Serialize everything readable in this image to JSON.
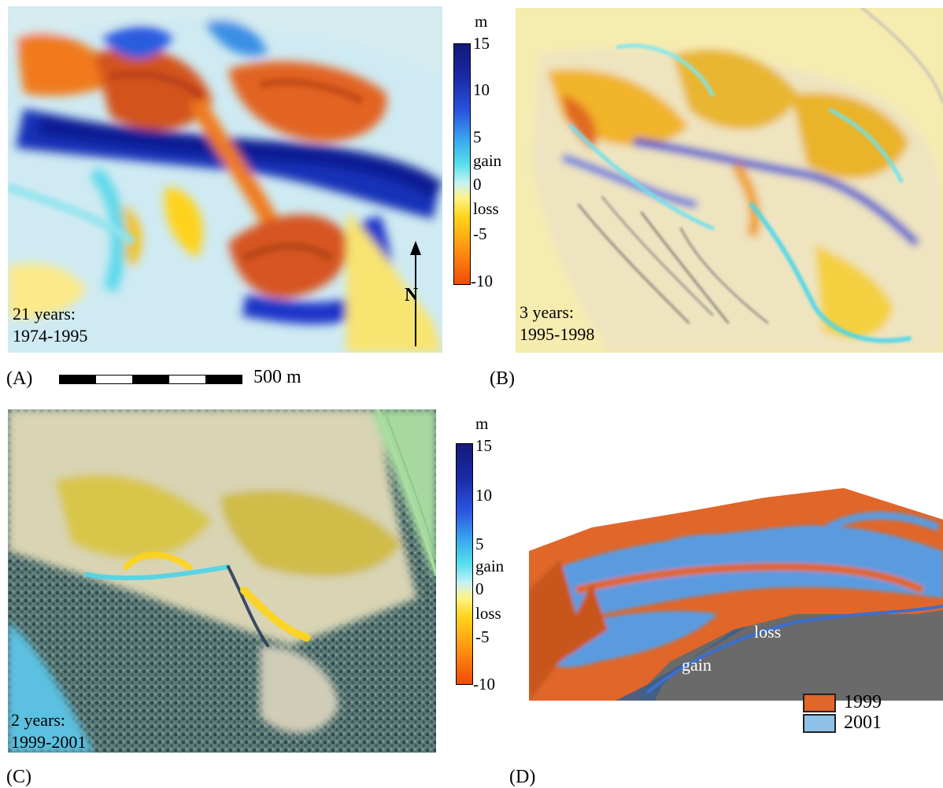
{
  "panels": {
    "a": {
      "letter": "(A)",
      "caption_line1": "21 years:",
      "caption_line2": "1974-1995",
      "scale_label": "500 m",
      "north_label": "N"
    },
    "b": {
      "letter": "(B)",
      "caption_line1": "3 years:",
      "caption_line2": "1995-1998"
    },
    "c": {
      "letter": "(C)",
      "caption_line1": "2 years:",
      "caption_line2": "1999-2001"
    },
    "d": {
      "letter": "(D)",
      "surface_label_loss": "loss",
      "surface_label_gain": "gain",
      "legend": [
        {
          "label": "1999",
          "color": "#e0662a"
        },
        {
          "label": "2001",
          "color": "#8ec2e8"
        }
      ]
    }
  },
  "colorbar": {
    "unit": "m",
    "ticks": [
      "15",
      "10",
      "5",
      "gain",
      "0",
      "loss",
      "-5",
      "-10"
    ],
    "colors": [
      "#141a78",
      "#2b55e0",
      "#56e0ec",
      "#fff38a",
      "#ffd51a",
      "#f24a07"
    ]
  }
}
